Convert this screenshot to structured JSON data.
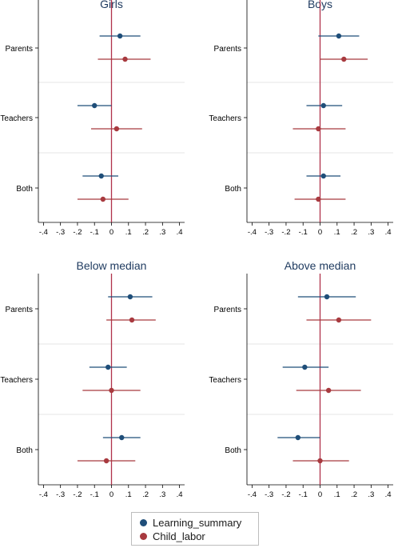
{
  "legend": [
    {
      "label": "Learning_summary",
      "color": "#1f4e79"
    },
    {
      "label": "Child_labor",
      "color": "#a83a3f"
    }
  ],
  "styles": {
    "zero_line_color": "#b0324a",
    "title_color": "#1e3a5f",
    "grid_color": "#e6e6e6"
  },
  "chart_data": [
    {
      "type": "scatter",
      "title": "Girls",
      "categories": [
        "Parents",
        "Teachers",
        "Both"
      ],
      "xlim": [
        -0.43,
        0.43
      ],
      "xticks": [
        -0.4,
        -0.3,
        -0.2,
        -0.1,
        0,
        0.1,
        0.2,
        0.3,
        0.4
      ],
      "xtick_labels": [
        "-.4",
        "-.3",
        "-.2",
        "-.1",
        "0",
        ".1",
        ".2",
        ".3",
        ".4"
      ],
      "series": [
        {
          "name": "Learning_summary",
          "estimates": [
            0.05,
            -0.1,
            -0.06
          ],
          "ci_low": [
            -0.07,
            -0.2,
            -0.17
          ],
          "ci_high": [
            0.17,
            0.0,
            0.04
          ]
        },
        {
          "name": "Child_labor",
          "estimates": [
            0.08,
            0.03,
            -0.05
          ],
          "ci_low": [
            -0.08,
            -0.12,
            -0.2
          ],
          "ci_high": [
            0.23,
            0.18,
            0.1
          ]
        }
      ]
    },
    {
      "type": "scatter",
      "title": "Boys",
      "categories": [
        "Parents",
        "Teachers",
        "Both"
      ],
      "xlim": [
        -0.43,
        0.43
      ],
      "xticks": [
        -0.4,
        -0.3,
        -0.2,
        -0.1,
        0,
        0.1,
        0.2,
        0.3,
        0.4
      ],
      "xtick_labels": [
        "-.4",
        "-.3",
        "-.2",
        "-.1",
        "0",
        ".1",
        ".2",
        ".3",
        ".4"
      ],
      "series": [
        {
          "name": "Learning_summary",
          "estimates": [
            0.11,
            0.02,
            0.02
          ],
          "ci_low": [
            -0.01,
            -0.08,
            -0.08
          ],
          "ci_high": [
            0.23,
            0.13,
            0.12
          ]
        },
        {
          "name": "Child_labor",
          "estimates": [
            0.14,
            -0.01,
            -0.01
          ],
          "ci_low": [
            0.0,
            -0.16,
            -0.15
          ],
          "ci_high": [
            0.28,
            0.15,
            0.15
          ]
        }
      ]
    },
    {
      "type": "scatter",
      "title": "Below median",
      "categories": [
        "Parents",
        "Teachers",
        "Both"
      ],
      "xlim": [
        -0.43,
        0.43
      ],
      "xticks": [
        -0.4,
        -0.3,
        -0.2,
        -0.1,
        0,
        0.1,
        0.2,
        0.3,
        0.4
      ],
      "xtick_labels": [
        "-.4",
        "-.3",
        "-.2",
        "-.1",
        "0",
        ".1",
        ".2",
        ".3",
        ".4"
      ],
      "series": [
        {
          "name": "Learning_summary",
          "estimates": [
            0.11,
            -0.02,
            0.06
          ],
          "ci_low": [
            -0.02,
            -0.13,
            -0.05
          ],
          "ci_high": [
            0.24,
            0.09,
            0.17
          ]
        },
        {
          "name": "Child_labor",
          "estimates": [
            0.12,
            0.0,
            -0.03
          ],
          "ci_low": [
            -0.03,
            -0.17,
            -0.2
          ],
          "ci_high": [
            0.26,
            0.17,
            0.14
          ]
        }
      ]
    },
    {
      "type": "scatter",
      "title": "Above median",
      "categories": [
        "Parents",
        "Teachers",
        "Both"
      ],
      "xlim": [
        -0.43,
        0.43
      ],
      "xticks": [
        -0.4,
        -0.3,
        -0.2,
        -0.1,
        0,
        0.1,
        0.2,
        0.3,
        0.4
      ],
      "xtick_labels": [
        "-.4",
        "-.3",
        "-.2",
        "-.1",
        "0",
        ".1",
        ".2",
        ".3",
        ".4"
      ],
      "series": [
        {
          "name": "Learning_summary",
          "estimates": [
            0.04,
            -0.09,
            -0.13
          ],
          "ci_low": [
            -0.13,
            -0.22,
            -0.25
          ],
          "ci_high": [
            0.21,
            0.05,
            0.0
          ]
        },
        {
          "name": "Child_labor",
          "estimates": [
            0.11,
            0.05,
            0.0
          ],
          "ci_low": [
            -0.08,
            -0.14,
            -0.16
          ],
          "ci_high": [
            0.3,
            0.24,
            0.17
          ]
        }
      ]
    }
  ]
}
